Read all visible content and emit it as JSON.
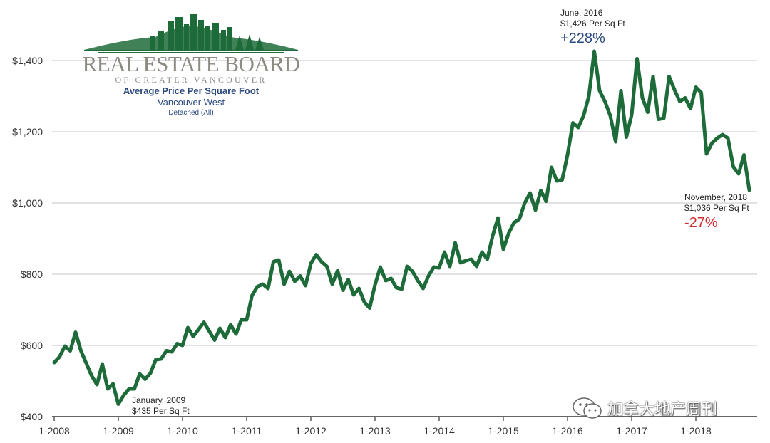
{
  "brand": {
    "name": "REAL ESTATE BOARD",
    "subname": "OF GREATER VANCOUVER",
    "color": "#1e6b3a",
    "text_color": "#8d8a82"
  },
  "watermark": {
    "text": "加拿大地产周刊",
    "icon": "wechat-icon"
  },
  "chart_data": {
    "type": "line",
    "title": "Average Price Per Square Foot",
    "subtitle": "Vancouver West",
    "subsubtitle": "Detached (All)",
    "xlabel": "",
    "ylabel": "",
    "x_start": "2008-01",
    "x_ticks": [
      "1-2008",
      "1-2009",
      "1-2010",
      "1-2011",
      "1-2012",
      "1-2013",
      "1-2014",
      "1-2015",
      "1-2016",
      "1-2017",
      "1-2018"
    ],
    "y_ticks": [
      400,
      600,
      800,
      1000,
      1200,
      1400
    ],
    "y_tick_labels": [
      "$400",
      "$600",
      "$800",
      "$1,000",
      "$1,200",
      "$1,400"
    ],
    "ylim": [
      400,
      1460
    ],
    "grid": true,
    "series": [
      {
        "name": "Average Price Per Square Foot",
        "color": "#1e6b3a",
        "values": [
          552,
          568,
          598,
          585,
          637,
          585,
          550,
          515,
          490,
          548,
          478,
          492,
          435,
          460,
          478,
          478,
          520,
          505,
          522,
          560,
          562,
          585,
          582,
          605,
          600,
          650,
          625,
          645,
          665,
          640,
          615,
          648,
          622,
          658,
          632,
          672,
          672,
          740,
          765,
          772,
          760,
          835,
          840,
          772,
          808,
          780,
          795,
          768,
          830,
          855,
          835,
          822,
          772,
          810,
          755,
          785,
          742,
          760,
          722,
          705,
          770,
          820,
          782,
          788,
          762,
          758,
          822,
          808,
          782,
          760,
          795,
          820,
          818,
          862,
          822,
          888,
          832,
          838,
          842,
          822,
          862,
          842,
          908,
          958,
          870,
          915,
          945,
          955,
          1000,
          1028,
          980,
          1035,
          1005,
          1100,
          1062,
          1065,
          1135,
          1225,
          1212,
          1245,
          1300,
          1426,
          1315,
          1285,
          1245,
          1172,
          1315,
          1185,
          1248,
          1405,
          1295,
          1255,
          1355,
          1235,
          1238,
          1355,
          1318,
          1285,
          1295,
          1265,
          1325,
          1310,
          1138,
          1168,
          1182,
          1192,
          1182,
          1102,
          1082,
          1135,
          1036
        ]
      }
    ],
    "annotations": [
      {
        "label": "January, 2009",
        "value_text": "$435 Per Sq Ft",
        "pct": ""
      },
      {
        "label": "June, 2016",
        "value_text": "$1,426 Per Sq Ft",
        "pct": "+228%"
      },
      {
        "label": "November, 2018",
        "value_text": "$1,036 Per Sq Ft",
        "pct": "-27%"
      }
    ]
  }
}
